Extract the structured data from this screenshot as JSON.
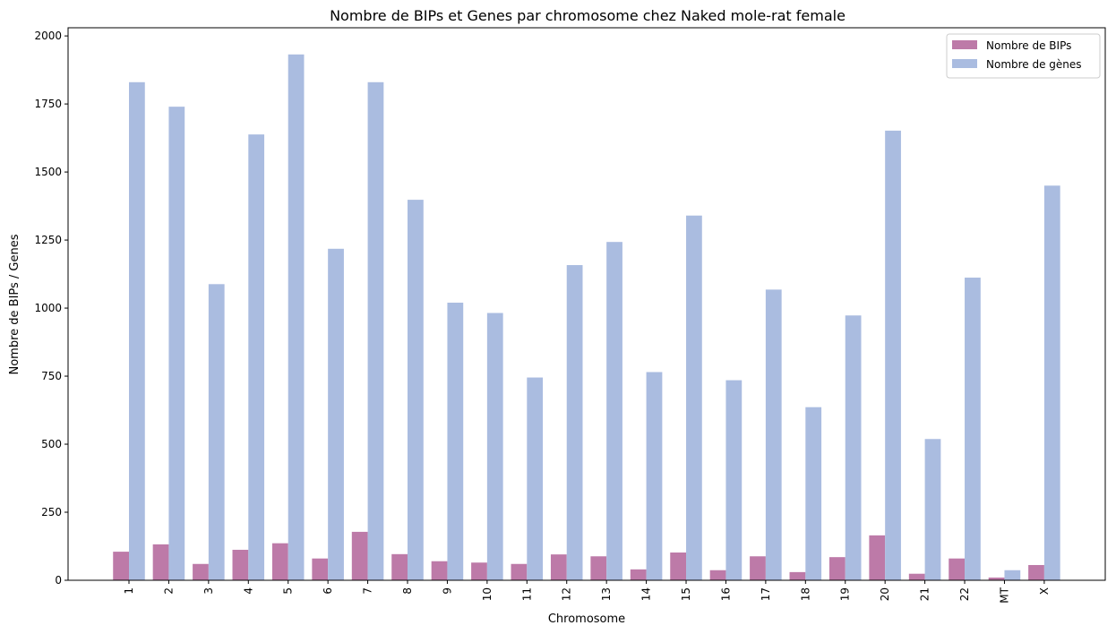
{
  "chart_data": {
    "type": "bar",
    "title": "Nombre de BIPs et Genes par chromosome chez Naked mole-rat female",
    "xlabel": "Chromosome",
    "ylabel": "Nombre de BIPs / Genes",
    "ylim": [
      0,
      2030
    ],
    "yticks": [
      0,
      250,
      500,
      750,
      1000,
      1250,
      1500,
      1750,
      2000
    ],
    "categories": [
      "1",
      "2",
      "3",
      "4",
      "5",
      "6",
      "7",
      "8",
      "9",
      "10",
      "11",
      "12",
      "13",
      "14",
      "15",
      "16",
      "17",
      "18",
      "19",
      "20",
      "21",
      "22",
      "MT",
      "X"
    ],
    "series": [
      {
        "name": "Nombre de BIPs",
        "color": "#bd7aa8",
        "values": [
          105,
          132,
          60,
          112,
          136,
          80,
          178,
          96,
          70,
          65,
          60,
          95,
          88,
          40,
          102,
          37,
          88,
          30,
          85,
          165,
          24,
          80,
          10,
          56
        ]
      },
      {
        "name": "Nombre de gènes",
        "color": "#aabce0",
        "values": [
          1830,
          1740,
          1088,
          1638,
          1932,
          1218,
          1830,
          1398,
          1020,
          982,
          745,
          1158,
          1243,
          765,
          1340,
          735,
          1068,
          636,
          973,
          1652,
          519,
          1112,
          37,
          1450
        ]
      }
    ],
    "legend": "top-right",
    "grid": false
  }
}
